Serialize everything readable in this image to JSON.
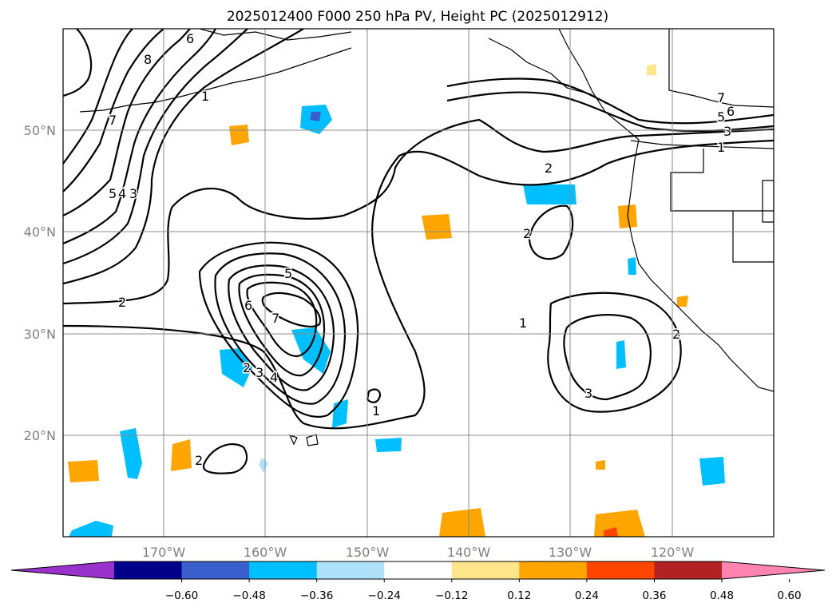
{
  "title": "2025012400 F000 250 hPa PV, Height PC (2025012912)",
  "map": {
    "lon_labels": [
      "170°W",
      "160°W",
      "150°W",
      "140°W",
      "130°W",
      "120°W"
    ],
    "lat_labels": [
      "50°N",
      "40°N",
      "30°N",
      "20°N"
    ],
    "contour_labels": [
      "8",
      "6",
      "7",
      "1",
      "5",
      "4",
      "3",
      "2",
      "7",
      "5",
      "6",
      "7",
      "4",
      "3",
      "2",
      "2",
      "1",
      "2",
      "3",
      "2",
      "1",
      "7",
      "6",
      "5",
      "3",
      "1",
      "2"
    ]
  },
  "colorbar": {
    "colors": [
      "#9932cc",
      "#00008b",
      "#3a5fcd",
      "#00bfff",
      "#afe1fa",
      "#ffffff",
      "#ffe68c",
      "#ffa500",
      "#ff4500",
      "#b22222",
      "#ff85b0"
    ],
    "tick_labels": [
      "−0.60",
      "−0.48",
      "−0.36",
      "−0.24",
      "−0.12",
      "0.12",
      "0.24",
      "0.36",
      "0.48",
      "0.60"
    ]
  }
}
